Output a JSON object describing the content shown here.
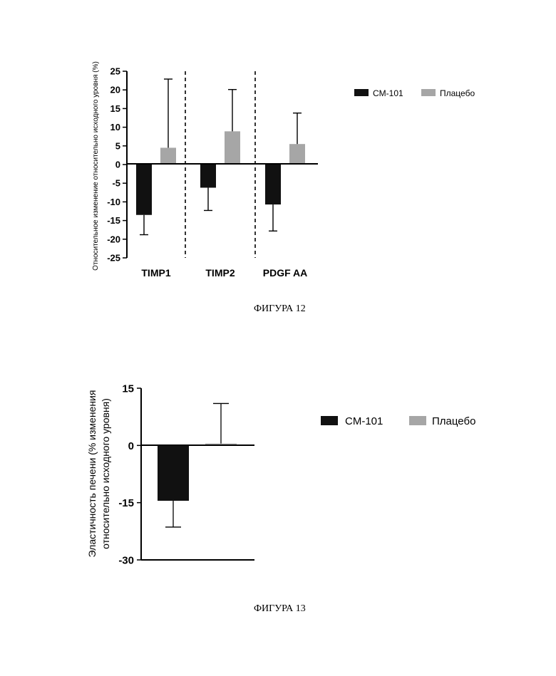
{
  "chart_data": [
    {
      "type": "bar",
      "categories": [
        "TIMP1",
        "TIMP2",
        "PDGF AA"
      ],
      "series": [
        {
          "name": "CM-101",
          "color": "#111111",
          "values": [
            -13.5,
            -6.2,
            -10.7
          ],
          "error": [
            5.3,
            6.1,
            7.1
          ]
        },
        {
          "name": "Плацебо",
          "color": "#a6a6a6",
          "values": [
            4.5,
            8.9,
            5.5
          ],
          "error": [
            18.4,
            11.2,
            8.3
          ]
        }
      ],
      "ylabel": "Относительное изменение относительно исходного уровня (%)",
      "ylim": [
        -25,
        25
      ],
      "yticks": [
        "25",
        "20",
        "15",
        "10",
        "5",
        "0",
        "-5",
        "-10",
        "-15",
        "-20",
        "-25"
      ],
      "grid": false,
      "legend": "right",
      "separators": "dashed"
    },
    {
      "type": "bar",
      "categories": [
        ""
      ],
      "series": [
        {
          "name": "CM-101",
          "color": "#111111",
          "values": [
            -14.5
          ],
          "error": [
            6.9
          ]
        },
        {
          "name": "Плацебо",
          "color": "#a6a6a6",
          "values": [
            0.5
          ],
          "error": [
            10.5
          ]
        }
      ],
      "ylabel": "Эластичность печени (% изменения относительно исходного уровня)",
      "ylabel_lines": [
        "Эластичность печени (% изменения",
        "относительно исходного уровня)"
      ],
      "ylim": [
        -30,
        15
      ],
      "yticks": [
        "15",
        "0",
        "-15",
        "-30"
      ],
      "grid": false,
      "legend": "right"
    }
  ],
  "captions": {
    "fig12": "ФИГУРА 12",
    "fig13": "ФИГУРА 13"
  }
}
